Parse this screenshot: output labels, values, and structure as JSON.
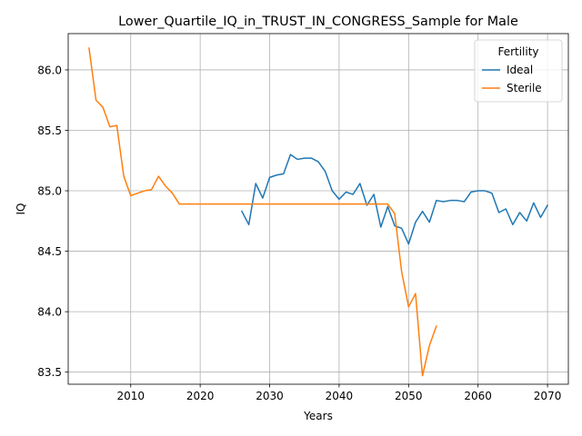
{
  "chart_data": {
    "type": "line",
    "title": "Lower_Quartile_IQ_in_TRUST_IN_CONGRESS_Sample for Male",
    "xlabel": "Years",
    "ylabel": "IQ",
    "xlim": [
      2001,
      2073
    ],
    "ylim": [
      83.4,
      86.3
    ],
    "x_ticks": [
      2010,
      2020,
      2030,
      2040,
      2050,
      2060,
      2070
    ],
    "y_ticks": [
      83.5,
      84.0,
      84.5,
      85.0,
      85.5,
      86.0
    ],
    "y_tick_labels": [
      "83.5",
      "84.0",
      "84.5",
      "85.0",
      "85.5",
      "86.0"
    ],
    "grid": true,
    "legend": {
      "title": "Fertility",
      "position": "top-right"
    },
    "series": [
      {
        "name": "Ideal",
        "color": "#1f77b4",
        "x": [
          2026,
          2027,
          2028,
          2029,
          2030,
          2031,
          2032,
          2033,
          2034,
          2035,
          2036,
          2037,
          2038,
          2039,
          2040,
          2041,
          2042,
          2043,
          2044,
          2045,
          2046,
          2047,
          2048,
          2049,
          2050,
          2051,
          2052,
          2053,
          2054,
          2055,
          2056,
          2057,
          2058,
          2059,
          2060,
          2061,
          2062,
          2063,
          2064,
          2065,
          2066,
          2067,
          2068,
          2069,
          2070
        ],
        "y": [
          84.83,
          84.72,
          85.06,
          84.94,
          85.11,
          85.13,
          85.14,
          85.3,
          85.26,
          85.27,
          85.27,
          85.24,
          85.16,
          85.0,
          84.93,
          84.99,
          84.97,
          85.06,
          84.88,
          84.97,
          84.7,
          84.87,
          84.71,
          84.69,
          84.56,
          84.74,
          84.83,
          84.74,
          84.92,
          84.91,
          84.92,
          84.92,
          84.91,
          84.99,
          85.0,
          85.0,
          84.98,
          84.82,
          84.85,
          84.72,
          84.82,
          84.75,
          84.9,
          84.78,
          84.88
        ]
      },
      {
        "name": "Sterile",
        "color": "#ff7f0e",
        "x": [
          2004,
          2005,
          2006,
          2007,
          2008,
          2009,
          2010,
          2011,
          2012,
          2013,
          2014,
          2015,
          2016,
          2017,
          2018,
          2019,
          2020,
          2021,
          2022,
          2023,
          2024,
          2025,
          2026,
          2027,
          2028,
          2029,
          2030,
          2031,
          2032,
          2033,
          2034,
          2035,
          2036,
          2037,
          2038,
          2039,
          2040,
          2041,
          2042,
          2043,
          2044,
          2045,
          2046,
          2047,
          2048,
          2049,
          2050,
          2051,
          2052,
          2053,
          2054
        ],
        "y": [
          86.18,
          85.75,
          85.69,
          85.53,
          85.54,
          85.12,
          84.96,
          84.98,
          85.0,
          85.01,
          85.12,
          85.04,
          84.98,
          84.89,
          84.89,
          84.89,
          84.89,
          84.89,
          84.89,
          84.89,
          84.89,
          84.89,
          84.89,
          84.89,
          84.89,
          84.89,
          84.89,
          84.89,
          84.89,
          84.89,
          84.89,
          84.89,
          84.89,
          84.89,
          84.89,
          84.89,
          84.89,
          84.89,
          84.89,
          84.89,
          84.89,
          84.89,
          84.89,
          84.89,
          84.81,
          84.33,
          84.04,
          84.15,
          83.47,
          83.72,
          83.88
        ]
      }
    ]
  }
}
